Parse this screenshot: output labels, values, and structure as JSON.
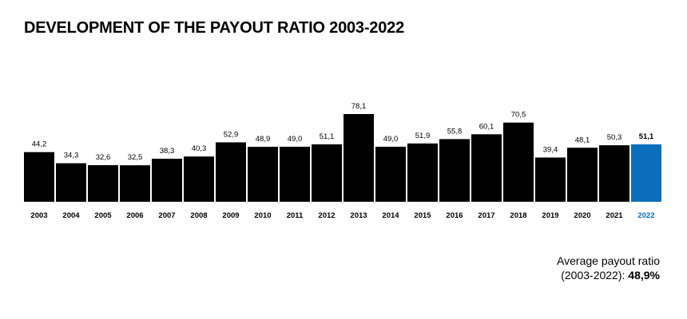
{
  "title": "DEVELOPMENT OF THE PAYOUT RATIO 2003-2022",
  "note": {
    "line1": "Average payout ratio",
    "line2_prefix": "(2003-2022): ",
    "line2_value": "48,9%"
  },
  "colors": {
    "bar": "#000000",
    "highlight": "#0a6ebd",
    "baseline": "#000000"
  },
  "chart_data": {
    "type": "bar",
    "title": "DEVELOPMENT OF THE PAYOUT RATIO 2003-2022",
    "xlabel": "",
    "ylabel": "",
    "grid": false,
    "ylim": [
      0,
      78.1
    ],
    "categories": [
      "2003",
      "2004",
      "2005",
      "2006",
      "2007",
      "2008",
      "2009",
      "2010",
      "2011",
      "2012",
      "2013",
      "2014",
      "2015",
      "2016",
      "2017",
      "2018",
      "2019",
      "2020",
      "2021",
      "2022"
    ],
    "values": [
      44.2,
      34.3,
      32.6,
      32.5,
      38.3,
      40.3,
      52.9,
      48.9,
      49.0,
      51.1,
      78.1,
      49.0,
      51.9,
      55.8,
      60.1,
      70.5,
      39.4,
      48.1,
      50.3,
      51.1
    ],
    "labels": [
      "44,2",
      "34,3",
      "32,6",
      "32,5",
      "38,3",
      "40,3",
      "52,9",
      "48,9",
      "49,0",
      "51,1",
      "78,1",
      "49,0",
      "51,9",
      "55,8",
      "60,1",
      "70,5",
      "39,4",
      "48,1",
      "50,3",
      "51,1"
    ],
    "highlight_category": "2022"
  }
}
